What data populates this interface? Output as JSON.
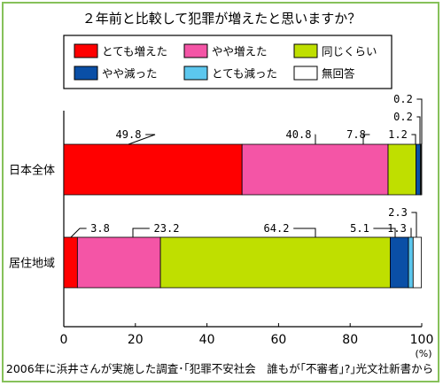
{
  "chart_data": {
    "type": "bar",
    "orientation": "horizontal",
    "stacked": true,
    "title": "２年前と比較して犯罪が増えたと思いますか？",
    "categories": [
      "日本全体",
      "居住地域"
    ],
    "series": [
      {
        "name": "とても増えた",
        "color": "#ff0000",
        "values": [
          49.8,
          3.8
        ]
      },
      {
        "name": "やや増えた",
        "color": "#f455a6",
        "values": [
          40.8,
          23.2
        ]
      },
      {
        "name": "同じくらい",
        "color": "#bfdf00",
        "values": [
          7.8,
          64.2
        ]
      },
      {
        "name": "やや減った",
        "color": "#0a4fa6",
        "values": [
          1.2,
          5.1
        ]
      },
      {
        "name": "とても減った",
        "color": "#5cc7ee",
        "values": [
          0.2,
          1.3
        ]
      },
      {
        "name": "無回答",
        "color": "#ffffff",
        "values": [
          0.2,
          2.3
        ]
      }
    ],
    "data_labels": [
      [
        "49.8",
        "40.8",
        "7.8",
        "1.2",
        "0.2",
        "0.2"
      ],
      [
        "3.8",
        "23.2",
        "64.2",
        "5.1",
        "1.3",
        "2.3"
      ]
    ],
    "xlim": [
      0,
      100
    ],
    "xticks": [
      "0",
      "20",
      "40",
      "60",
      "80",
      "100"
    ],
    "xunit": "(%)",
    "legend_position": "top",
    "grid": false
  },
  "footer": "2006年に浜井さんが実施した調査･｢犯罪不安社会　誰もが｢不審者｣?｣光文社新書から"
}
